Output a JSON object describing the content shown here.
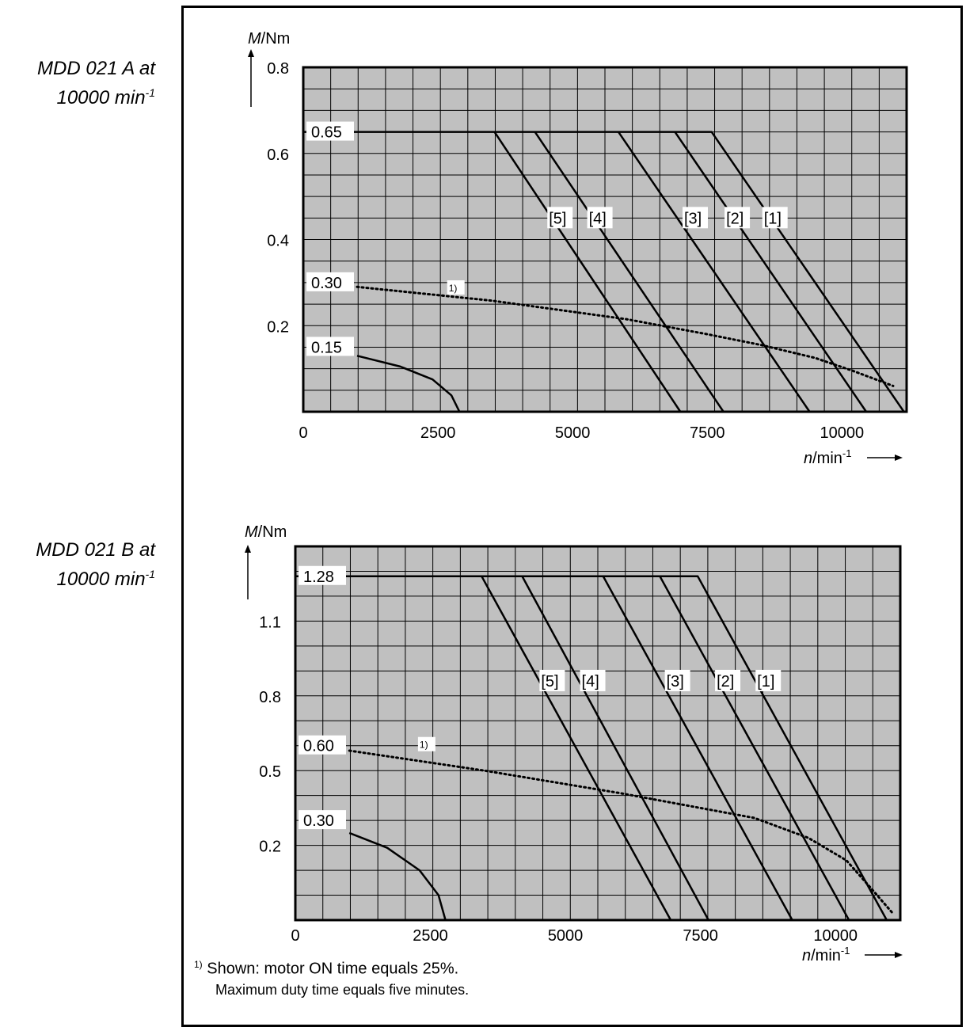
{
  "labels": [
    {
      "line1": "MDD 021 A at",
      "line2_text": "10000 min",
      "line2_sup": "-1"
    },
    {
      "line1": "MDD 021 B at",
      "line2_text": "10000 min",
      "line2_sup": "-1"
    }
  ],
  "footnote": {
    "marker": "1)",
    "line1": "Shown: motor ON time equals 25%.",
    "line2": "Maximum duty time equals five minutes."
  },
  "colors": {
    "plot_bg": "#c0c0c0",
    "grid": "#000000",
    "curve": "#000000",
    "label_bg": "#ffffff"
  },
  "chart_data": [
    {
      "type": "line",
      "title": "",
      "ylabel_var": "M",
      "ylabel_unit": "/Nm",
      "xlabel_var": "n",
      "xlabel_unit": "/min",
      "xlabel_sup": "-1",
      "xlim": [
        0,
        11200
      ],
      "ylim": [
        0,
        0.8
      ],
      "x_ticks": [
        0,
        2500,
        5000,
        7500,
        10000
      ],
      "x_tick_labels": [
        "0",
        "2500",
        "5000",
        "7500",
        "10000"
      ],
      "y_ticks": [
        0.2,
        0.4,
        0.6,
        0.8
      ],
      "y_tick_labels": [
        "0.2",
        "0.4",
        "0.6",
        "0.8"
      ],
      "grid": true,
      "level_labels": [
        {
          "text": "0.65",
          "y": 0.65
        },
        {
          "text": "0.30",
          "y": 0.3
        },
        {
          "text": "0.15",
          "y": 0.15
        }
      ],
      "footnote_marker": {
        "text": "1)",
        "x": 2700,
        "y": 0.285
      },
      "series": [
        {
          "name": "[1]",
          "style": "solid",
          "x": [
            0,
            7580,
            11150
          ],
          "y": [
            0.65,
            0.65,
            0
          ]
        },
        {
          "name": "[2]",
          "style": "solid",
          "x": [
            6900,
            10450
          ],
          "y": [
            0.65,
            0
          ]
        },
        {
          "name": "[3]",
          "style": "solid",
          "x": [
            5850,
            9400
          ],
          "y": [
            0.65,
            0
          ]
        },
        {
          "name": "[4]",
          "style": "solid",
          "x": [
            4300,
            7800
          ],
          "y": [
            0.65,
            0
          ]
        },
        {
          "name": "[5]",
          "style": "solid",
          "x": [
            3550,
            7000
          ],
          "y": [
            0.65,
            0
          ]
        },
        {
          "name": "1)",
          "style": "dotted",
          "x": [
            1000,
            3500,
            6000,
            7500,
            8500,
            9500,
            10200,
            10950
          ],
          "y": [
            0.29,
            0.258,
            0.215,
            0.18,
            0.155,
            0.125,
            0.095,
            0.06
          ]
        },
        {
          "name": "",
          "style": "solid",
          "x": [
            1000,
            1800,
            2400,
            2750,
            2900
          ],
          "y": [
            0.13,
            0.105,
            0.075,
            0.038,
            0
          ]
        }
      ],
      "series_labels": [
        {
          "text": "[5]",
          "x": 4560,
          "y": 0.45
        },
        {
          "text": "[4]",
          "x": 5300,
          "y": 0.45
        },
        {
          "text": "[3]",
          "x": 7070,
          "y": 0.45
        },
        {
          "text": "[2]",
          "x": 7850,
          "y": 0.45
        },
        {
          "text": "[1]",
          "x": 8550,
          "y": 0.45
        }
      ]
    },
    {
      "type": "line",
      "title": "",
      "ylabel_var": "M",
      "ylabel_unit": "/Nm",
      "xlabel_var": "n",
      "xlabel_unit": "/min",
      "xlabel_sup": "-1",
      "xlim": [
        0,
        11200
      ],
      "ylim": [
        -0.1,
        1.4
      ],
      "x_ticks": [
        0,
        2500,
        5000,
        7500,
        10000
      ],
      "x_tick_labels": [
        "0",
        "2500",
        "5000",
        "7500",
        "10000"
      ],
      "y_ticks": [
        0.2,
        0.5,
        0.8,
        1.1
      ],
      "y_tick_labels": [
        "0.2",
        "0.5",
        "0.8",
        "1.1"
      ],
      "grid": true,
      "level_labels": [
        {
          "text": "1.28",
          "y": 1.28
        },
        {
          "text": "0.60",
          "y": 0.6
        },
        {
          "text": "0.30",
          "y": 0.3
        }
      ],
      "footnote_marker": {
        "text": "1)",
        "x": 2300,
        "y": 0.6
      },
      "series": [
        {
          "name": "[1]",
          "style": "solid",
          "x": [
            0,
            7450,
            10950
          ],
          "y": [
            1.28,
            1.28,
            -0.1
          ]
        },
        {
          "name": "[2]",
          "style": "solid",
          "x": [
            6750,
            10250
          ],
          "y": [
            1.28,
            -0.1
          ]
        },
        {
          "name": "[3]",
          "style": "solid",
          "x": [
            5700,
            9200
          ],
          "y": [
            1.28,
            -0.1
          ]
        },
        {
          "name": "[4]",
          "style": "solid",
          "x": [
            4200,
            7650
          ],
          "y": [
            1.28,
            -0.1
          ]
        },
        {
          "name": "[5]",
          "style": "solid",
          "x": [
            3450,
            6950
          ],
          "y": [
            1.28,
            -0.1
          ]
        },
        {
          "name": "1)",
          "style": "dotted",
          "x": [
            1000,
            3500,
            6000,
            7500,
            8500,
            9500,
            10200,
            10650,
            11050
          ],
          "y": [
            0.58,
            0.5,
            0.41,
            0.35,
            0.31,
            0.23,
            0.14,
            0.03,
            -0.07
          ]
        },
        {
          "name": "",
          "style": "solid",
          "x": [
            1000,
            1700,
            2300,
            2650,
            2780
          ],
          "y": [
            0.25,
            0.19,
            0.1,
            0.0,
            -0.1
          ]
        }
      ],
      "series_labels": [
        {
          "text": "[5]",
          "x": 4550,
          "y": 0.86
        },
        {
          "text": "[4]",
          "x": 5300,
          "y": 0.86
        },
        {
          "text": "[3]",
          "x": 6870,
          "y": 0.86
        },
        {
          "text": "[2]",
          "x": 7800,
          "y": 0.86
        },
        {
          "text": "[1]",
          "x": 8550,
          "y": 0.86
        }
      ]
    }
  ]
}
